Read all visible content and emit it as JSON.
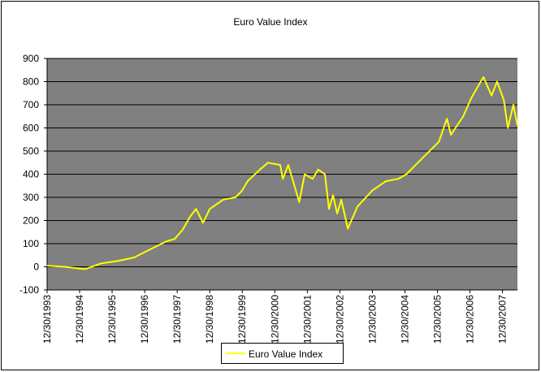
{
  "chart_data": {
    "type": "line",
    "title": "Euro Value Index",
    "x": [
      "12/30/1993",
      "7/15/1994",
      "2/28/1995",
      "8/30/1995",
      "2/28/1996",
      "8/30/1996",
      "2/28/1997",
      "8/30/1997",
      "11/30/1997",
      "2/28/1998",
      "5/30/1998",
      "7/30/1998",
      "10/15/1998",
      "12/30/1998",
      "5/30/1999",
      "10/15/1999",
      "12/30/1999",
      "2/28/2000",
      "7/15/2000",
      "10/15/2000",
      "2/28/2001",
      "3/30/2001",
      "5/30/2001",
      "9/30/2001",
      "11/30/2001",
      "2/28/2002",
      "4/30/2002",
      "7/15/2002",
      "8/30/2002",
      "10/15/2002",
      "11/30/2002",
      "1/15/2003",
      "3/30/2003",
      "7/15/2003",
      "12/30/2003",
      "5/30/2004",
      "10/15/2004",
      "1/15/2005",
      "7/15/2005",
      "1/15/2006",
      "4/15/2006",
      "5/30/2006",
      "10/15/2006",
      "1/15/2007",
      "5/30/2007",
      "8/30/2007",
      "10/30/2007",
      "1/15/2008",
      "2/28/2008",
      "4/30/2008",
      "6/15/2008"
    ],
    "series": [
      {
        "name": "Euro Value Index",
        "color": "#ffff00",
        "values": [
          5,
          0,
          -10,
          15,
          25,
          40,
          75,
          110,
          120,
          160,
          220,
          250,
          190,
          250,
          290,
          300,
          330,
          370,
          420,
          450,
          440,
          380,
          440,
          280,
          400,
          380,
          420,
          400,
          250,
          310,
          230,
          290,
          165,
          260,
          330,
          370,
          380,
          400,
          470,
          540,
          640,
          570,
          650,
          730,
          820,
          740,
          800,
          720,
          600,
          700,
          610
        ]
      }
    ],
    "xlim": [
      "12/30/1993",
      "6/15/2008"
    ],
    "xticks": [
      "12/30/1993",
      "12/30/1994",
      "12/30/1995",
      "12/30/1996",
      "12/30/1997",
      "12/30/1998",
      "12/30/1999",
      "12/30/2000",
      "12/30/2001",
      "12/30/2002",
      "12/30/2003",
      "12/30/2004",
      "12/30/2005",
      "12/30/2006",
      "12/30/2007"
    ],
    "ylim": [
      -100,
      900
    ],
    "yticks": [
      -100,
      0,
      100,
      200,
      300,
      400,
      500,
      600,
      700,
      800,
      900
    ],
    "grid": true,
    "legend": "bottom"
  }
}
